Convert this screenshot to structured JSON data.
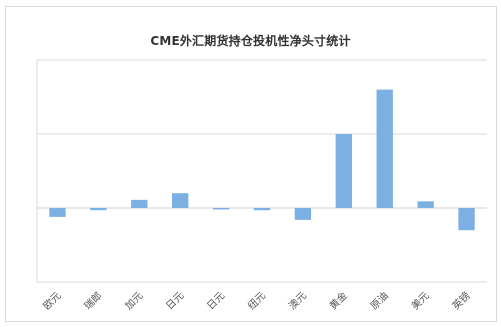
{
  "chart_data": {
    "type": "bar",
    "title": "CME外汇期货持仓投机性净头寸统计",
    "xlabel": "",
    "ylabel": "",
    "categories": [
      "欧元",
      "瑞郎",
      "加元",
      "日元",
      "日元",
      "纽元",
      "澳元",
      "黄金",
      "原油",
      "美元",
      "英镑"
    ],
    "series": [
      {
        "values": [
          -1.2,
          -0.3,
          1.1,
          2.0,
          -0.2,
          -0.3,
          -1.6,
          10.0,
          16.0,
          0.9,
          -3.0
        ]
      }
    ],
    "ylim": [
      -10,
      20
    ],
    "y_gridlines": [
      -10,
      0,
      10,
      20
    ],
    "grid": "horizontal",
    "legend": "none",
    "tick_labels_rotated": true,
    "bar_color": "#7cb0e3",
    "grid_color": "#d9d9d9",
    "text_color": "#555555"
  }
}
